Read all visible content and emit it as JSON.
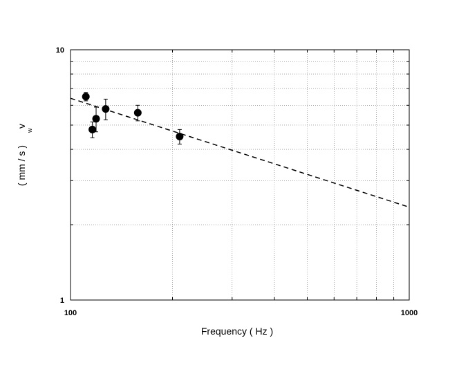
{
  "chart_data": {
    "type": "scatter",
    "x_scale": "log",
    "y_scale": "log",
    "xlim": [
      100,
      1000
    ],
    "ylim": [
      1,
      10
    ],
    "xlabel": "Frequency ( Hz )",
    "ylabel_main": "v",
    "ylabel_sub": "w",
    "ylabel_unit": "( mm / s )",
    "x_tick_labels": [
      "100",
      "1000"
    ],
    "y_tick_labels": [
      "1",
      "10"
    ],
    "grid": true,
    "points": [
      {
        "x": 111,
        "y": 6.5,
        "err": 0.25
      },
      {
        "x": 116,
        "y": 4.8,
        "err": 0.35
      },
      {
        "x": 119,
        "y": 5.3,
        "err": 0.6
      },
      {
        "x": 127,
        "y": 5.8,
        "err": 0.55
      },
      {
        "x": 158,
        "y": 5.6,
        "err": 0.4
      },
      {
        "x": 210,
        "y": 4.5,
        "err": 0.3
      }
    ],
    "fit_line": {
      "style": "dashed",
      "x": [
        100,
        1000
      ],
      "y": [
        6.4,
        2.35
      ]
    }
  }
}
